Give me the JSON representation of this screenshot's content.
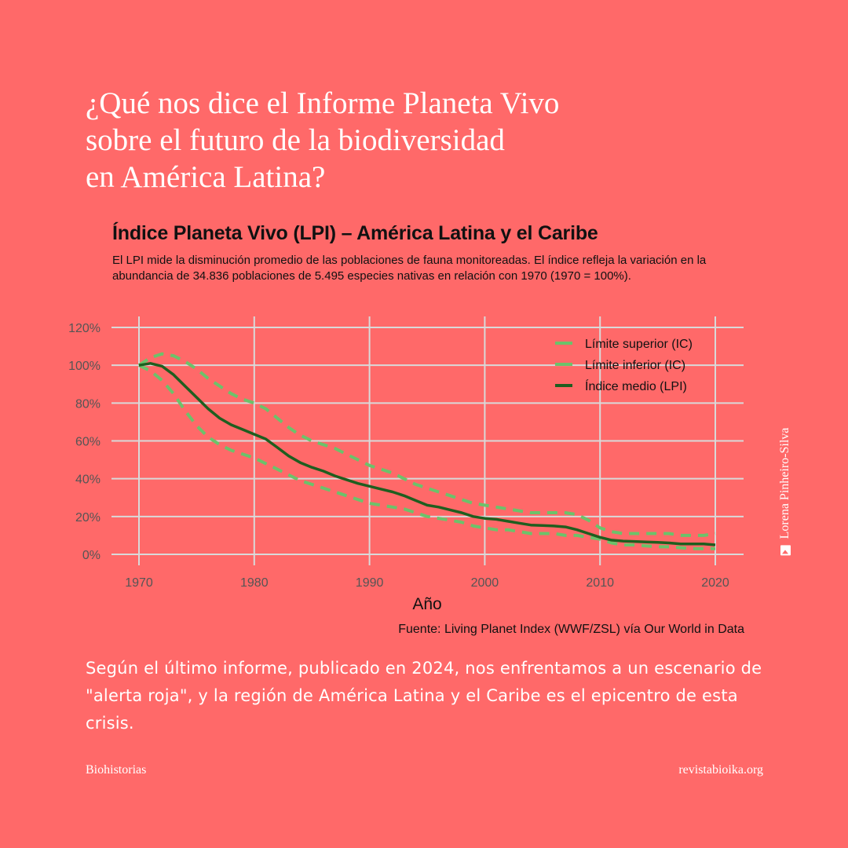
{
  "headline": {
    "line1": "¿Qué nos dice el Informe Planeta Vivo",
    "line2": "sobre el futuro de la biodiversidad",
    "line3": "en América Latina?"
  },
  "chart": {
    "title": "Índice Planeta Vivo (LPI) – América Latina y el Caribe",
    "subtitle": "El LPI mide la disminución promedio de las poblaciones de fauna monitoreadas. El índice refleja la variación en la abundancia de 34.836 poblaciones de 5.495 especies nativas en relación con 1970 (1970 = 100%).",
    "xlabel": "Año",
    "source": "Fuente: Living Planet Index (WWF/ZSL) vía Our World in Data",
    "y_ticks": [
      "0%",
      "20%",
      "40%",
      "60%",
      "80%",
      "100%",
      "120%"
    ],
    "x_ticks": [
      "1970",
      "1980",
      "1990",
      "2000",
      "2010",
      "2020"
    ],
    "legend": [
      "Límite superior (IC)",
      "Límite inferior (IC)",
      "Índice medio (LPI)"
    ],
    "colors": {
      "upper": "#6cc26a",
      "lower": "#6cc26a",
      "mean": "#1f5e1f",
      "grid": "#d9d9d9",
      "background": "#ff6969"
    }
  },
  "chart_data": {
    "type": "line",
    "title": "Índice Planeta Vivo (LPI) – América Latina y el Caribe",
    "xlabel": "Año",
    "ylabel": "",
    "ylim": [
      0,
      120
    ],
    "xlim": [
      1970,
      2020
    ],
    "grid": true,
    "legend_position": "top-right",
    "x": [
      1970,
      1971,
      1972,
      1973,
      1974,
      1975,
      1976,
      1977,
      1978,
      1979,
      1980,
      1981,
      1982,
      1983,
      1984,
      1985,
      1986,
      1987,
      1988,
      1989,
      1990,
      1991,
      1992,
      1993,
      1994,
      1995,
      1996,
      1997,
      1998,
      1999,
      2000,
      2001,
      2002,
      2003,
      2004,
      2005,
      2006,
      2007,
      2008,
      2009,
      2010,
      2011,
      2012,
      2013,
      2014,
      2015,
      2016,
      2017,
      2018,
      2019,
      2020
    ],
    "series": [
      {
        "name": "Límite superior (IC)",
        "style": "dashed",
        "values": [
          100,
          104,
          106,
          105,
          102,
          98,
          93,
          89,
          85,
          82,
          80,
          77,
          72,
          67,
          63,
          60,
          58,
          56,
          53,
          50,
          47,
          45,
          43,
          40,
          37,
          35,
          33,
          31,
          29,
          27,
          26,
          25,
          24,
          23,
          22,
          22,
          22,
          22,
          21,
          18,
          14,
          12,
          11,
          11,
          11,
          11,
          11,
          10,
          10,
          10,
          11
        ]
      },
      {
        "name": "Límite inferior (IC)",
        "style": "dashed",
        "values": [
          100,
          97,
          92,
          85,
          76,
          68,
          62,
          58,
          55,
          53,
          51,
          48,
          45,
          42,
          39,
          37,
          35,
          33,
          31,
          29,
          27,
          26,
          25,
          24,
          22,
          20,
          19,
          18,
          17,
          15,
          14,
          13,
          13,
          12,
          11,
          11,
          11,
          10,
          10,
          9,
          8,
          6,
          5,
          5,
          4.5,
          4,
          4,
          3.5,
          3,
          3,
          3
        ]
      },
      {
        "name": "Índice medio (LPI)",
        "style": "solid",
        "values": [
          100,
          101,
          99.5,
          95,
          89,
          83,
          77,
          72,
          68.5,
          66,
          63.5,
          61,
          56.5,
          52,
          48.5,
          46,
          44,
          41.5,
          39.5,
          37.5,
          36,
          34.5,
          33,
          31,
          28.5,
          26,
          25,
          23.5,
          22,
          20,
          19,
          18.5,
          17.5,
          16.5,
          15.5,
          15.3,
          15,
          14.5,
          13,
          11,
          9,
          7.5,
          7,
          6.8,
          6.5,
          6.3,
          6,
          5.5,
          5.5,
          5.5,
          5
        ]
      }
    ]
  },
  "body": {
    "paragraph": "Según el último informe, publicado en 2024, nos enfrentamos a un escenario de \"alerta roja\", y la región de América Latina y el Caribe es el epicentro de esta crisis."
  },
  "footer": {
    "left": "Biohistorias",
    "right": "revistabioika.org"
  },
  "credit": {
    "icon": "image-icon",
    "text": "Lorena Pinheiro-Silva"
  }
}
